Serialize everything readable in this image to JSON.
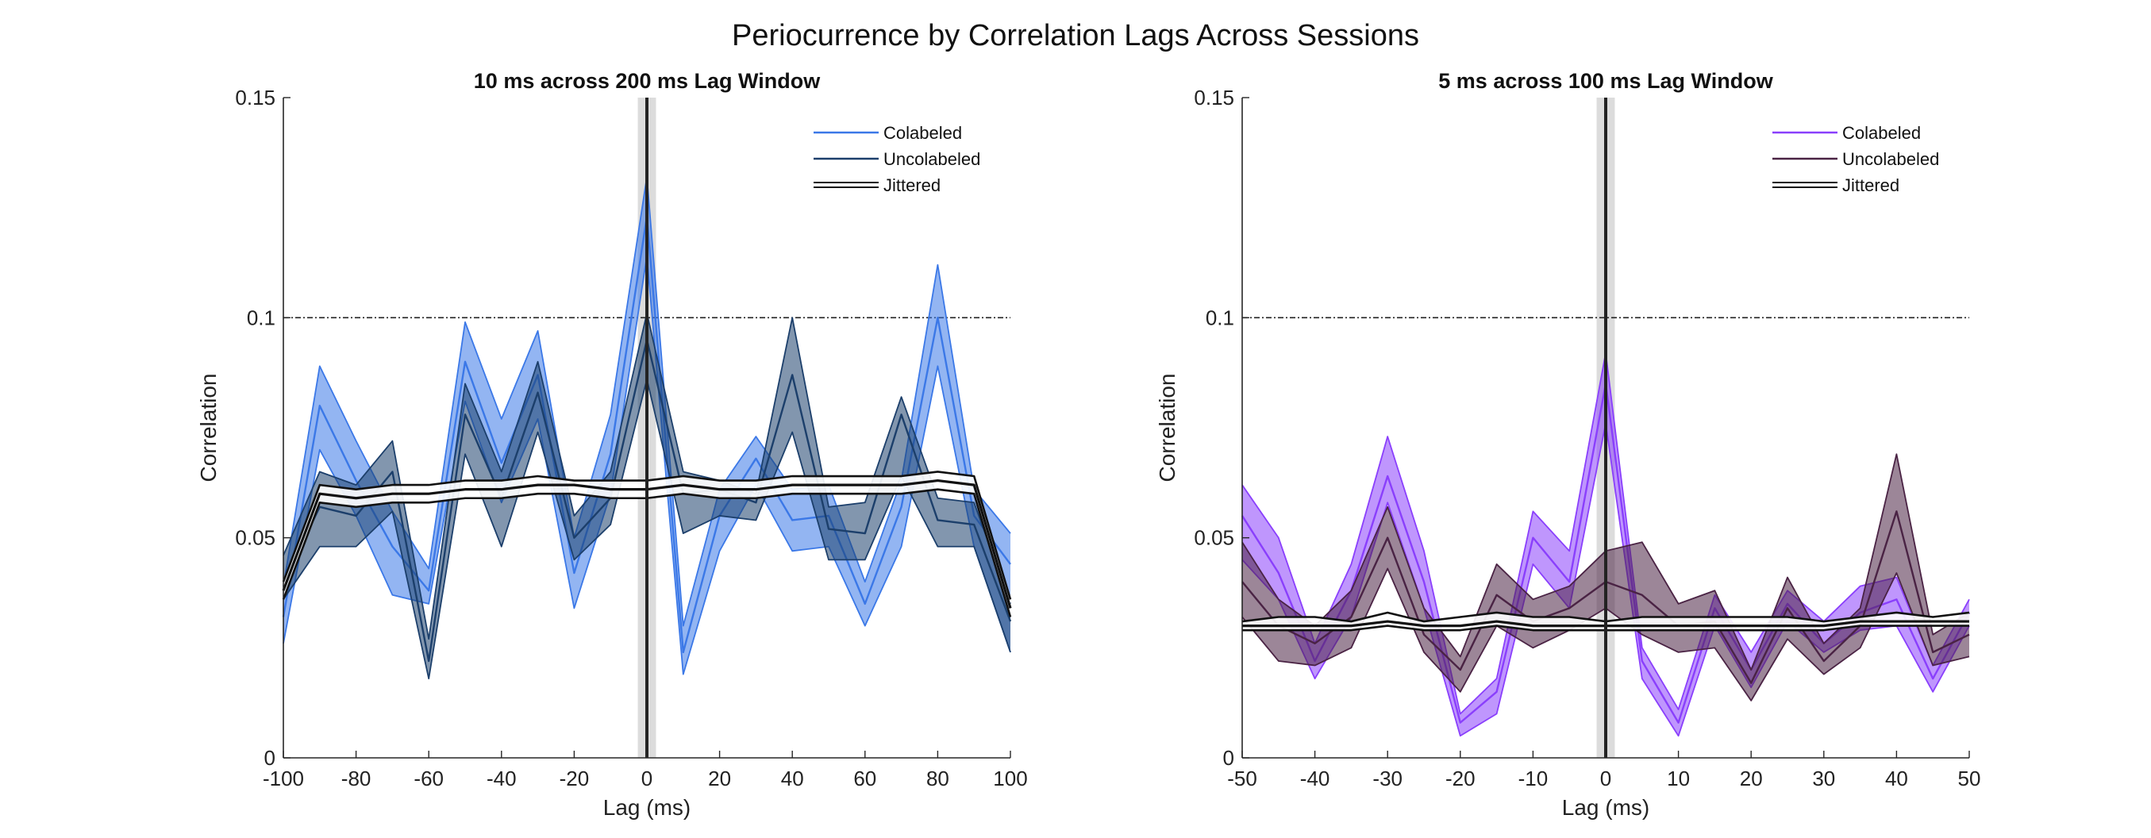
{
  "figure": {
    "title": "Periocurrence by Correlation Lags Across Sessions"
  },
  "chart_data": [
    {
      "type": "area",
      "title": "10 ms across 200 ms Lag Window",
      "xlabel": "Lag (ms)",
      "ylabel": "Correlation",
      "xlim": [
        -100,
        100
      ],
      "ylim": [
        0,
        0.15
      ],
      "xticks": [
        -100,
        -80,
        -60,
        -40,
        -20,
        0,
        20,
        40,
        60,
        80,
        100
      ],
      "yticks": [
        0,
        0.05,
        0.1,
        0.15
      ],
      "ytick_labels": [
        "0",
        "0.05",
        "0.1",
        "0.15"
      ],
      "grid": false,
      "legend_position": "top-right",
      "threshold_line": 0.1,
      "zero_lag_band": [
        -2.5,
        2.5
      ],
      "x": [
        -100,
        -90,
        -80,
        -70,
        -60,
        -50,
        -40,
        -30,
        -20,
        -10,
        0,
        10,
        20,
        30,
        40,
        50,
        60,
        70,
        80,
        90,
        100
      ],
      "series": [
        {
          "name": "Colabeled",
          "color": "#3b78e7",
          "mean": [
            0.032,
            0.08,
            0.063,
            0.048,
            0.038,
            0.09,
            0.067,
            0.087,
            0.042,
            0.069,
            0.123,
            0.024,
            0.055,
            0.068,
            0.054,
            0.055,
            0.035,
            0.057,
            0.1,
            0.055,
            0.044
          ],
          "upper": [
            0.039,
            0.089,
            0.072,
            0.056,
            0.043,
            0.099,
            0.077,
            0.097,
            0.05,
            0.078,
            0.132,
            0.03,
            0.061,
            0.073,
            0.061,
            0.062,
            0.04,
            0.063,
            0.112,
            0.061,
            0.051
          ],
          "lower": [
            0.026,
            0.07,
            0.055,
            0.037,
            0.035,
            0.081,
            0.058,
            0.077,
            0.034,
            0.06,
            0.114,
            0.019,
            0.047,
            0.062,
            0.047,
            0.048,
            0.03,
            0.048,
            0.089,
            0.048,
            0.024
          ]
        },
        {
          "name": "Uncolabeled",
          "color": "#1c3f6b",
          "mean": [
            0.04,
            0.057,
            0.055,
            0.065,
            0.022,
            0.078,
            0.059,
            0.083,
            0.05,
            0.059,
            0.095,
            0.06,
            0.061,
            0.058,
            0.087,
            0.052,
            0.051,
            0.078,
            0.054,
            0.053,
            0.031
          ],
          "upper": [
            0.046,
            0.065,
            0.062,
            0.072,
            0.027,
            0.085,
            0.065,
            0.09,
            0.055,
            0.065,
            0.101,
            0.065,
            0.063,
            0.06,
            0.1,
            0.057,
            0.058,
            0.082,
            0.059,
            0.058,
            0.035
          ],
          "lower": [
            0.036,
            0.048,
            0.048,
            0.056,
            0.018,
            0.069,
            0.048,
            0.074,
            0.045,
            0.053,
            0.086,
            0.051,
            0.055,
            0.054,
            0.074,
            0.045,
            0.045,
            0.064,
            0.048,
            0.048,
            0.024
          ]
        },
        {
          "name": "Jittered",
          "color": "#111111",
          "mean": [
            0.038,
            0.06,
            0.059,
            0.06,
            0.06,
            0.061,
            0.061,
            0.062,
            0.062,
            0.061,
            0.061,
            0.062,
            0.061,
            0.061,
            0.062,
            0.062,
            0.062,
            0.062,
            0.063,
            0.062,
            0.034
          ],
          "upper": [
            0.04,
            0.062,
            0.061,
            0.062,
            0.062,
            0.063,
            0.063,
            0.064,
            0.063,
            0.063,
            0.063,
            0.064,
            0.063,
            0.063,
            0.064,
            0.064,
            0.064,
            0.064,
            0.065,
            0.064,
            0.036
          ],
          "lower": [
            0.036,
            0.058,
            0.057,
            0.058,
            0.058,
            0.059,
            0.059,
            0.06,
            0.06,
            0.059,
            0.059,
            0.06,
            0.059,
            0.059,
            0.06,
            0.06,
            0.06,
            0.06,
            0.061,
            0.06,
            0.032
          ]
        }
      ]
    },
    {
      "type": "area",
      "title": "5 ms across 100 ms Lag Window",
      "xlabel": "Lag (ms)",
      "ylabel": "Correlation",
      "xlim": [
        -50,
        50
      ],
      "ylim": [
        0,
        0.15
      ],
      "xticks": [
        -50,
        -40,
        -30,
        -20,
        -10,
        0,
        10,
        20,
        30,
        40,
        50
      ],
      "yticks": [
        0,
        0.05,
        0.1,
        0.15
      ],
      "ytick_labels": [
        "0",
        "0.05",
        "0.1",
        "0.15"
      ],
      "grid": false,
      "legend_position": "top-right",
      "threshold_line": 0.1,
      "zero_lag_band": [
        -1.25,
        1.25
      ],
      "x": [
        -50,
        -45,
        -40,
        -35,
        -30,
        -25,
        -20,
        -15,
        -10,
        -5,
        0,
        5,
        10,
        15,
        20,
        25,
        30,
        35,
        40,
        45,
        50
      ],
      "series": [
        {
          "name": "Colabeled",
          "color": "#8a3ffc",
          "mean": [
            0.055,
            0.042,
            0.022,
            0.038,
            0.064,
            0.04,
            0.008,
            0.015,
            0.05,
            0.04,
            0.085,
            0.022,
            0.008,
            0.034,
            0.02,
            0.035,
            0.026,
            0.033,
            0.036,
            0.018,
            0.033
          ],
          "upper": [
            0.062,
            0.05,
            0.026,
            0.044,
            0.073,
            0.047,
            0.01,
            0.018,
            0.056,
            0.047,
            0.092,
            0.025,
            0.011,
            0.037,
            0.024,
            0.038,
            0.031,
            0.039,
            0.041,
            0.021,
            0.036
          ],
          "lower": [
            0.045,
            0.036,
            0.018,
            0.032,
            0.058,
            0.034,
            0.005,
            0.01,
            0.044,
            0.034,
            0.076,
            0.018,
            0.005,
            0.03,
            0.016,
            0.031,
            0.024,
            0.029,
            0.03,
            0.015,
            0.03
          ]
        },
        {
          "name": "Uncolabeled",
          "color": "#4a2344",
          "mean": [
            0.04,
            0.03,
            0.026,
            0.032,
            0.05,
            0.028,
            0.02,
            0.037,
            0.031,
            0.034,
            0.04,
            0.037,
            0.03,
            0.031,
            0.017,
            0.034,
            0.022,
            0.03,
            0.056,
            0.024,
            0.028
          ],
          "upper": [
            0.049,
            0.036,
            0.03,
            0.038,
            0.057,
            0.034,
            0.023,
            0.044,
            0.036,
            0.039,
            0.047,
            0.049,
            0.035,
            0.038,
            0.02,
            0.041,
            0.026,
            0.034,
            0.069,
            0.028,
            0.033
          ],
          "lower": [
            0.032,
            0.022,
            0.021,
            0.025,
            0.043,
            0.024,
            0.015,
            0.03,
            0.025,
            0.029,
            0.034,
            0.028,
            0.024,
            0.025,
            0.013,
            0.027,
            0.019,
            0.025,
            0.042,
            0.021,
            0.023
          ]
        },
        {
          "name": "Jittered",
          "color": "#111111",
          "mean": [
            0.03,
            0.03,
            0.03,
            0.03,
            0.031,
            0.03,
            0.03,
            0.031,
            0.03,
            0.03,
            0.03,
            0.03,
            0.03,
            0.03,
            0.03,
            0.03,
            0.03,
            0.031,
            0.031,
            0.031,
            0.031
          ],
          "upper": [
            0.031,
            0.032,
            0.032,
            0.031,
            0.033,
            0.031,
            0.032,
            0.033,
            0.032,
            0.032,
            0.031,
            0.032,
            0.032,
            0.032,
            0.032,
            0.032,
            0.031,
            0.032,
            0.033,
            0.032,
            0.033
          ],
          "lower": [
            0.029,
            0.029,
            0.029,
            0.029,
            0.03,
            0.029,
            0.029,
            0.03,
            0.029,
            0.029,
            0.029,
            0.029,
            0.029,
            0.029,
            0.029,
            0.029,
            0.029,
            0.03,
            0.03,
            0.03,
            0.03
          ]
        }
      ]
    }
  ]
}
